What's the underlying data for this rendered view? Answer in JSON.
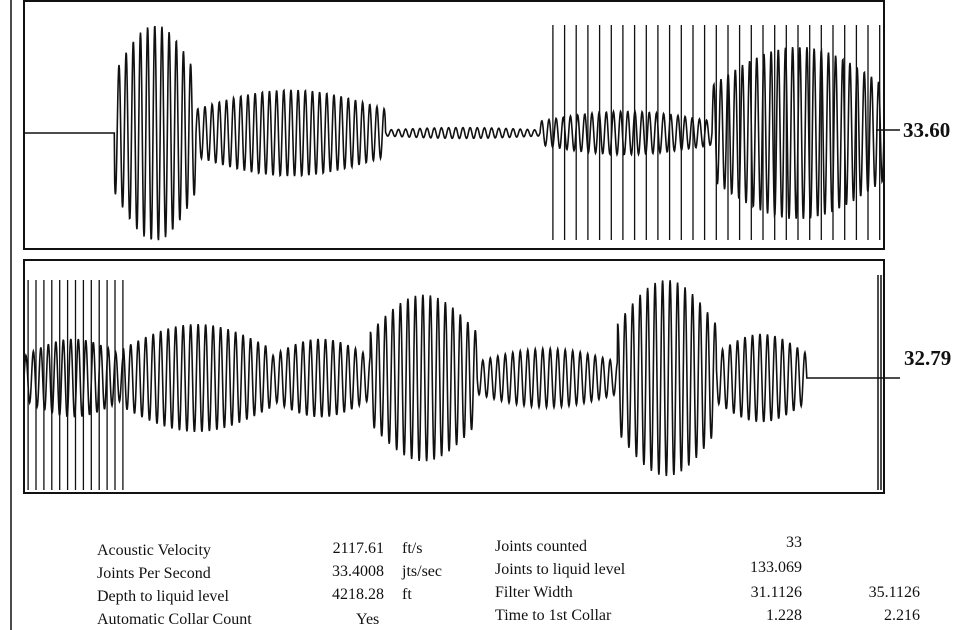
{
  "panels": [
    {
      "label": "33.60"
    },
    {
      "label": "32.79"
    }
  ],
  "stats_left": [
    {
      "label": "Acoustic Velocity",
      "value": "2117.61",
      "unit": "ft/s"
    },
    {
      "label": "Joints Per Second",
      "value": "33.4008",
      "unit": "jts/sec"
    },
    {
      "label": "Depth to liquid level",
      "value": "4218.28",
      "unit": "ft"
    },
    {
      "label": "Automatic Collar Count",
      "value": "Yes",
      "unit": ""
    }
  ],
  "stats_right": [
    {
      "label": "Joints counted",
      "value": "33",
      "value2": ""
    },
    {
      "label": "Joints to liquid level",
      "value": "133.069",
      "value2": ""
    },
    {
      "label": "Filter Width",
      "value": "31.1126",
      "value2": "35.1126"
    },
    {
      "label": "Time to 1st Collar",
      "value": "1.228",
      "value2": "2.216"
    }
  ],
  "chart_data": {
    "type": "line",
    "panels": [
      {
        "right_label": "33.60",
        "segments": [
          {
            "t_start": 0.0,
            "t_end": 0.105,
            "amplitude": 0.0
          },
          {
            "t_start": 0.105,
            "t_end": 0.2,
            "amplitude": 1.0
          },
          {
            "t_start": 0.2,
            "t_end": 0.42,
            "amplitude": 0.4
          },
          {
            "t_start": 0.42,
            "t_end": 0.6,
            "amplitude": 0.05
          },
          {
            "t_start": 0.6,
            "t_end": 0.8,
            "amplitude": 0.2
          },
          {
            "t_start": 0.8,
            "t_end": 1.0,
            "amplitude": 0.8
          }
        ],
        "collar_markers": {
          "count": 29,
          "t_start": 0.615,
          "t_end": 0.995
        }
      },
      {
        "right_label": "32.79",
        "segments": [
          {
            "t_start": 0.0,
            "t_end": 0.12,
            "amplitude": 0.4
          },
          {
            "t_start": 0.12,
            "t_end": 0.3,
            "amplitude": 0.55
          },
          {
            "t_start": 0.3,
            "t_end": 0.42,
            "amplitude": 0.4
          },
          {
            "t_start": 0.42,
            "t_end": 0.55,
            "amplitude": 0.85
          },
          {
            "t_start": 0.55,
            "t_end": 0.72,
            "amplitude": 0.3
          },
          {
            "t_start": 0.72,
            "t_end": 0.84,
            "amplitude": 1.0
          },
          {
            "t_start": 0.84,
            "t_end": 0.95,
            "amplitude": 0.45
          },
          {
            "t_start": 0.95,
            "t_end": 1.0,
            "amplitude": 0.0
          }
        ],
        "collar_markers": {
          "count": 13,
          "t_start": 0.005,
          "t_end": 0.12
        }
      }
    ]
  }
}
